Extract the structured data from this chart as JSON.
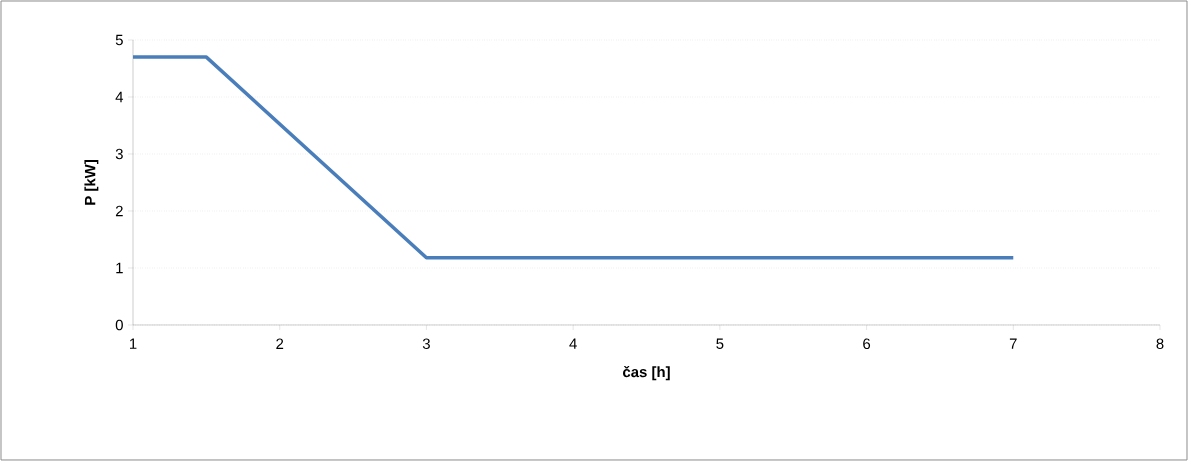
{
  "chart_data": {
    "type": "line",
    "xlabel": "čas [h]",
    "ylabel": "P [kW]",
    "x": [
      1,
      1.5,
      3,
      7
    ],
    "series": [
      {
        "color": "#4a7ebb",
        "values": [
          4.7,
          4.7,
          1.18,
          1.18
        ]
      }
    ],
    "xlim": [
      1,
      8
    ],
    "xticks": [
      1,
      2,
      3,
      4,
      5,
      6,
      7,
      8
    ],
    "ylim": [
      0,
      5
    ],
    "yticks": [
      0,
      1,
      2,
      3,
      4,
      5
    ],
    "grid": "y"
  }
}
